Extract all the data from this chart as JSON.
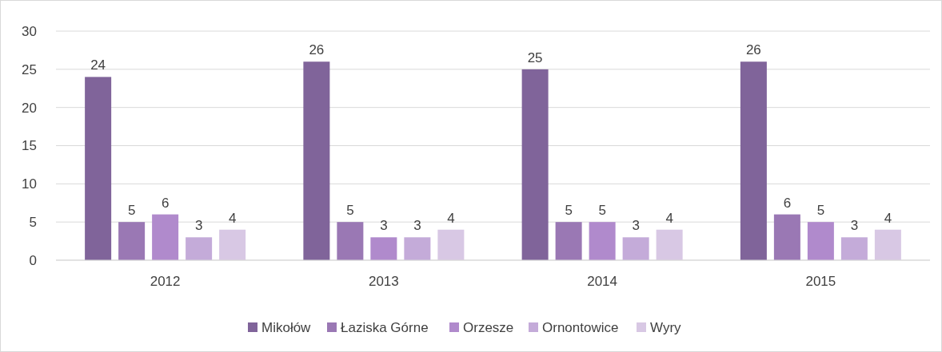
{
  "chart_data": {
    "type": "bar",
    "categories": [
      "2012",
      "2013",
      "2014",
      "2015"
    ],
    "series": [
      {
        "name": "Mikołów",
        "color": "#80649a",
        "values": [
          24,
          26,
          25,
          26
        ]
      },
      {
        "name": "Łaziska Górne",
        "color": "#9a78b4",
        "values": [
          5,
          5,
          5,
          6
        ]
      },
      {
        "name": "Orzesze",
        "color": "#b08acc",
        "values": [
          6,
          3,
          5,
          5
        ]
      },
      {
        "name": "Ornontowice",
        "color": "#c4abd9",
        "values": [
          3,
          3,
          3,
          3
        ]
      },
      {
        "name": "Wyry",
        "color": "#d8c8e4",
        "values": [
          4,
          4,
          4,
          4
        ]
      }
    ],
    "ylim": [
      0,
      30
    ],
    "yticks": [
      0,
      5,
      10,
      15,
      20,
      25,
      30
    ],
    "grid": "y",
    "legend": "bottom",
    "data_labels": true
  }
}
